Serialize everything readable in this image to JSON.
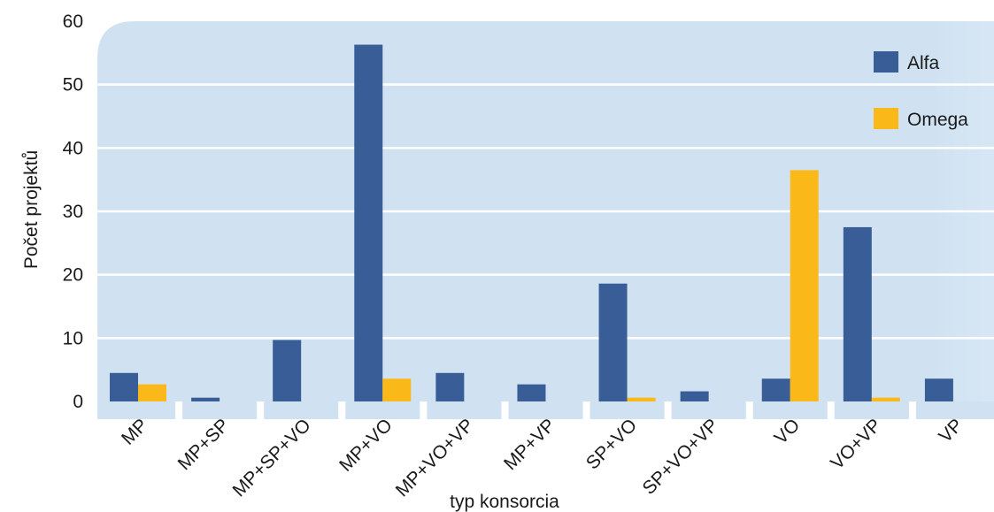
{
  "chart_data": {
    "type": "bar",
    "title": "",
    "xlabel": "typ konsorcia",
    "ylabel": "Počet projektů",
    "ylim": [
      0,
      60
    ],
    "yticks": [
      0,
      10,
      20,
      30,
      40,
      50,
      60
    ],
    "grid": true,
    "legend_position": "top-right",
    "categories": [
      "MP",
      "MP+SP",
      "MP+SP+VO",
      "MP+VO",
      "MP+VO+VP",
      "MP+VP",
      "SP+VO",
      "SP+VO+VP",
      "VO",
      "VO+VP",
      "VP"
    ],
    "series": [
      {
        "name": "Alfa",
        "color": "#385d97",
        "values": [
          4.5,
          0.6,
          9.7,
          56.3,
          4.5,
          2.7,
          18.6,
          1.6,
          3.6,
          27.5,
          3.6
        ]
      },
      {
        "name": "Omega",
        "color": "#fbb919",
        "values": [
          2.7,
          0,
          0,
          3.6,
          0,
          0,
          0.6,
          0,
          36.5,
          0.6,
          0
        ]
      }
    ],
    "plot_background": "#d0e2f2"
  }
}
